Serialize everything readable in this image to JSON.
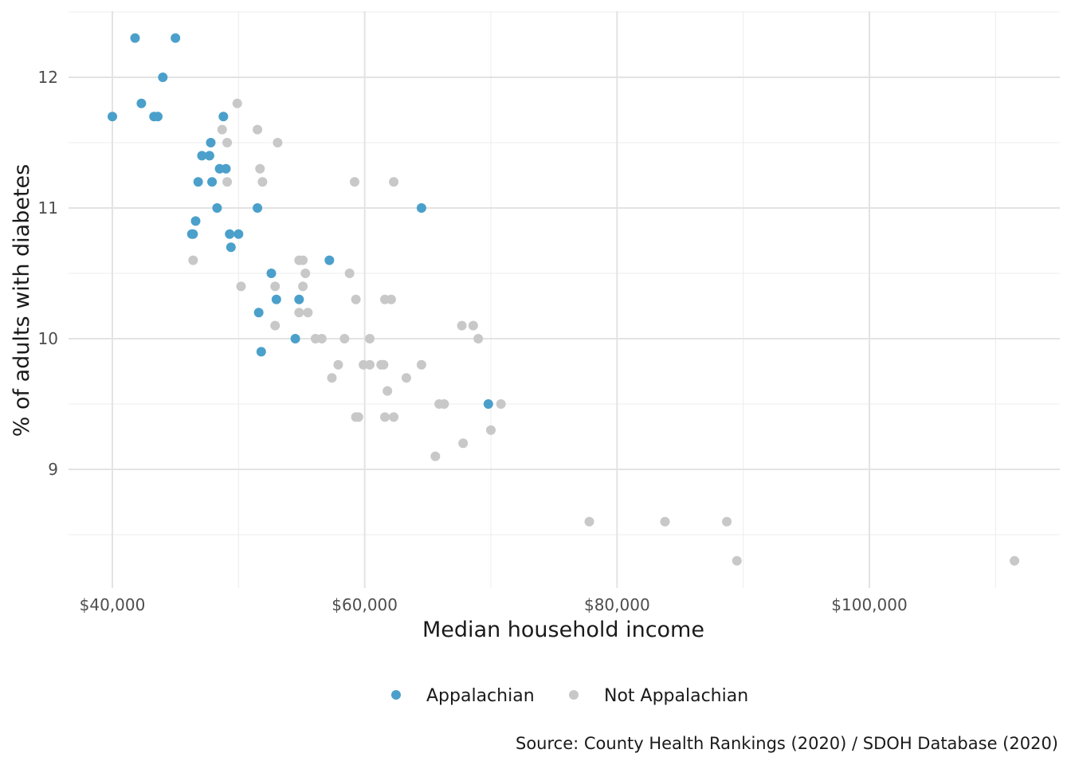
{
  "chart_data": {
    "type": "scatter",
    "title": "",
    "xlabel": "Median household income",
    "ylabel": "% of adults with diabetes",
    "caption": "Source: County Health Rankings (2020) / SDOH Database (2020)",
    "xlim": [
      33000,
      114500
    ],
    "ylim": [
      8.05,
      12.5
    ],
    "x_ticks": [
      40000,
      60000,
      80000,
      100000
    ],
    "x_tick_labels": [
      "$40,000",
      "$60,000",
      "$80,000",
      "$100,000"
    ],
    "y_ticks": [
      9,
      10,
      11,
      12
    ],
    "y_tick_labels": [
      "9",
      "10",
      "11",
      "12"
    ],
    "grid": true,
    "legend_position": "bottom",
    "series": [
      {
        "name": "Appalachian",
        "color": "#4ba0cb",
        "points": [
          [
            40000,
            11.7
          ],
          [
            41800,
            12.3
          ],
          [
            42300,
            11.8
          ],
          [
            43300,
            11.7
          ],
          [
            43600,
            11.7
          ],
          [
            44000,
            12.0
          ],
          [
            45000,
            12.3
          ],
          [
            46300,
            10.8
          ],
          [
            46400,
            10.8
          ],
          [
            46600,
            10.9
          ],
          [
            46800,
            11.2
          ],
          [
            47100,
            11.4
          ],
          [
            47700,
            11.4
          ],
          [
            47800,
            11.5
          ],
          [
            47900,
            11.2
          ],
          [
            48300,
            11.0
          ],
          [
            48500,
            11.3
          ],
          [
            48800,
            11.7
          ],
          [
            49000,
            11.3
          ],
          [
            49300,
            10.8
          ],
          [
            49400,
            10.7
          ],
          [
            50000,
            10.8
          ],
          [
            51500,
            11.0
          ],
          [
            51600,
            10.2
          ],
          [
            51800,
            9.9
          ],
          [
            52600,
            10.5
          ],
          [
            53000,
            10.3
          ],
          [
            54500,
            10.0
          ],
          [
            54800,
            10.3
          ],
          [
            57200,
            10.6
          ],
          [
            64500,
            11.0
          ],
          [
            69800,
            9.5
          ]
        ]
      },
      {
        "name": "Not Appalachian",
        "color": "#c8c8c8",
        "points": [
          [
            46400,
            10.6
          ],
          [
            48700,
            11.6
          ],
          [
            49100,
            11.5
          ],
          [
            49100,
            11.2
          ],
          [
            49900,
            11.8
          ],
          [
            50200,
            10.4
          ],
          [
            51500,
            11.6
          ],
          [
            51700,
            11.3
          ],
          [
            51900,
            11.2
          ],
          [
            52900,
            10.1
          ],
          [
            52900,
            10.4
          ],
          [
            53100,
            11.5
          ],
          [
            54800,
            10.6
          ],
          [
            54800,
            10.2
          ],
          [
            55100,
            10.6
          ],
          [
            55100,
            10.4
          ],
          [
            55300,
            10.5
          ],
          [
            55500,
            10.2
          ],
          [
            56100,
            10.0
          ],
          [
            56600,
            10.0
          ],
          [
            57400,
            9.7
          ],
          [
            57900,
            9.8
          ],
          [
            58400,
            10.0
          ],
          [
            58800,
            10.5
          ],
          [
            59200,
            11.2
          ],
          [
            59300,
            10.3
          ],
          [
            59300,
            9.4
          ],
          [
            59500,
            9.4
          ],
          [
            59900,
            9.8
          ],
          [
            60400,
            10.0
          ],
          [
            60400,
            9.8
          ],
          [
            61300,
            9.8
          ],
          [
            61500,
            9.8
          ],
          [
            61600,
            10.3
          ],
          [
            61600,
            9.4
          ],
          [
            61800,
            9.6
          ],
          [
            62100,
            10.3
          ],
          [
            62300,
            11.2
          ],
          [
            62300,
            9.4
          ],
          [
            63300,
            9.7
          ],
          [
            64500,
            9.8
          ],
          [
            65600,
            9.1
          ],
          [
            65900,
            9.5
          ],
          [
            66300,
            9.5
          ],
          [
            67700,
            10.1
          ],
          [
            67800,
            9.2
          ],
          [
            68600,
            10.1
          ],
          [
            69000,
            10.0
          ],
          [
            70000,
            9.3
          ],
          [
            70800,
            9.5
          ],
          [
            77800,
            8.6
          ],
          [
            83800,
            8.6
          ],
          [
            88700,
            8.6
          ],
          [
            89500,
            8.3
          ],
          [
            111500,
            8.3
          ]
        ]
      }
    ]
  }
}
